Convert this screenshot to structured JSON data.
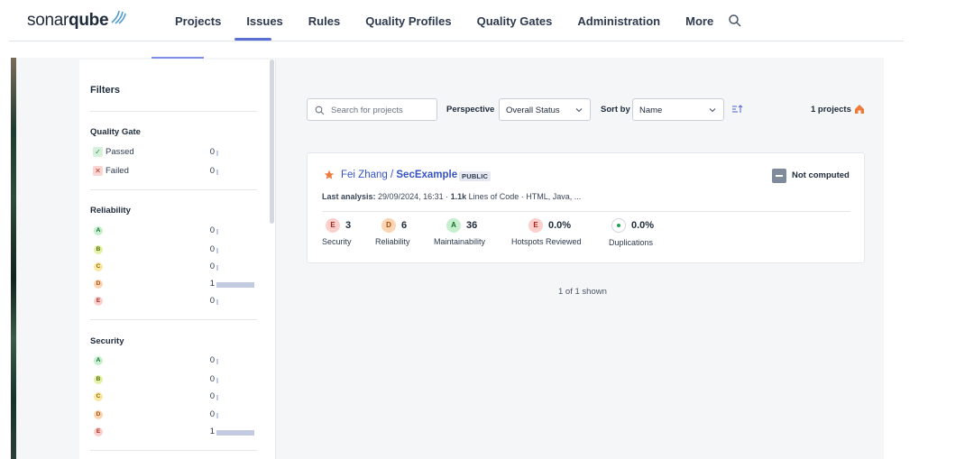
{
  "logo": {
    "text_light": "sonar",
    "text_bold": "qube"
  },
  "nav": {
    "items": [
      "Projects",
      "Issues",
      "Rules",
      "Quality Profiles",
      "Quality Gates",
      "Administration",
      "More"
    ],
    "active": "Issues",
    "search_icon": "search-icon"
  },
  "filters": {
    "title": "Filters",
    "quality_gate": {
      "title": "Quality Gate",
      "items": [
        {
          "label": "Passed",
          "count": "0",
          "icon": "check-icon",
          "fraction": 0
        },
        {
          "label": "Failed",
          "count": "0",
          "icon": "x-icon",
          "fraction": 0
        }
      ]
    },
    "reliability": {
      "title": "Reliability",
      "items": [
        {
          "rating": "A",
          "count": "0",
          "fraction": 0
        },
        {
          "rating": "B",
          "count": "0",
          "fraction": 0
        },
        {
          "rating": "C",
          "count": "0",
          "fraction": 0
        },
        {
          "rating": "D",
          "count": "1",
          "fraction": 1
        },
        {
          "rating": "E",
          "count": "0",
          "fraction": 0
        }
      ]
    },
    "security": {
      "title": "Security",
      "items": [
        {
          "rating": "A",
          "count": "0",
          "fraction": 0
        },
        {
          "rating": "B",
          "count": "0",
          "fraction": 0
        },
        {
          "rating": "C",
          "count": "0",
          "fraction": 0
        },
        {
          "rating": "D",
          "count": "0",
          "fraction": 0
        },
        {
          "rating": "E",
          "count": "1",
          "fraction": 1
        }
      ]
    }
  },
  "toolbar": {
    "search_placeholder": "Search for projects",
    "search_value": "",
    "perspective_label": "Perspective",
    "perspective_value": "Overall Status",
    "sort_label": "Sort by",
    "sort_value": "Name",
    "sort_direction_icon": "sort-ascending-icon",
    "project_count": "1 projects",
    "home_icon": "home-icon"
  },
  "project": {
    "owner": "Fei Zhang",
    "separator": " / ",
    "name": "SecExample",
    "visibility": "PUBLIC",
    "favorite": true,
    "quality_gate": "Not computed",
    "analysis_label": "Last analysis:",
    "analysis_date": "29/09/2024, 16:31",
    "loc_value": "1.1k",
    "loc_label": "Lines of Code",
    "languages": "HTML, Java, ...",
    "metrics": {
      "security": {
        "rating": "E",
        "value": "3",
        "label": "Security"
      },
      "reliability": {
        "rating": "D",
        "value": "6",
        "label": "Reliability"
      },
      "maintainability": {
        "rating": "A",
        "value": "36",
        "label": "Maintainability"
      },
      "hotspots": {
        "rating": "E",
        "value": "0.0%",
        "label": "Hotspots Reviewed"
      },
      "duplications": {
        "value": "0.0%",
        "label": "Duplications"
      }
    }
  },
  "pagination": {
    "shown": "1 of 1 shown"
  },
  "colors": {
    "accent": "#5a6fd6",
    "link": "#3553c4",
    "favorite_star": "#ee7b3c",
    "home_orange": "#ee7b3c"
  }
}
